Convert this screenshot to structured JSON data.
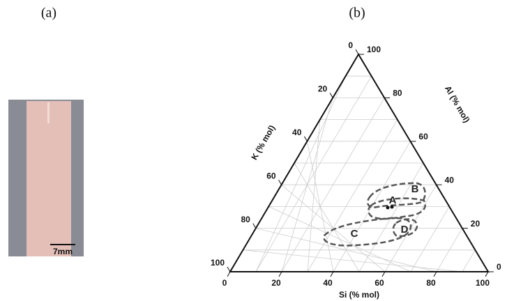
{
  "panel_a": {
    "label": "(a)",
    "scale_bar": "7mm"
  },
  "panel_b": {
    "label": "(b)",
    "axes": {
      "bottom": {
        "title": "Si (% mol)",
        "ticks": [
          0,
          20,
          40,
          60,
          80,
          100
        ]
      },
      "right": {
        "title": "Al (% mol)",
        "ticks": [
          0,
          20,
          40,
          60,
          80,
          100
        ]
      },
      "left": {
        "title": "K (% mol)",
        "ticks": [
          0,
          20,
          40,
          60,
          80,
          100
        ]
      }
    },
    "regions": [
      "A",
      "B",
      "C",
      "D"
    ]
  }
}
